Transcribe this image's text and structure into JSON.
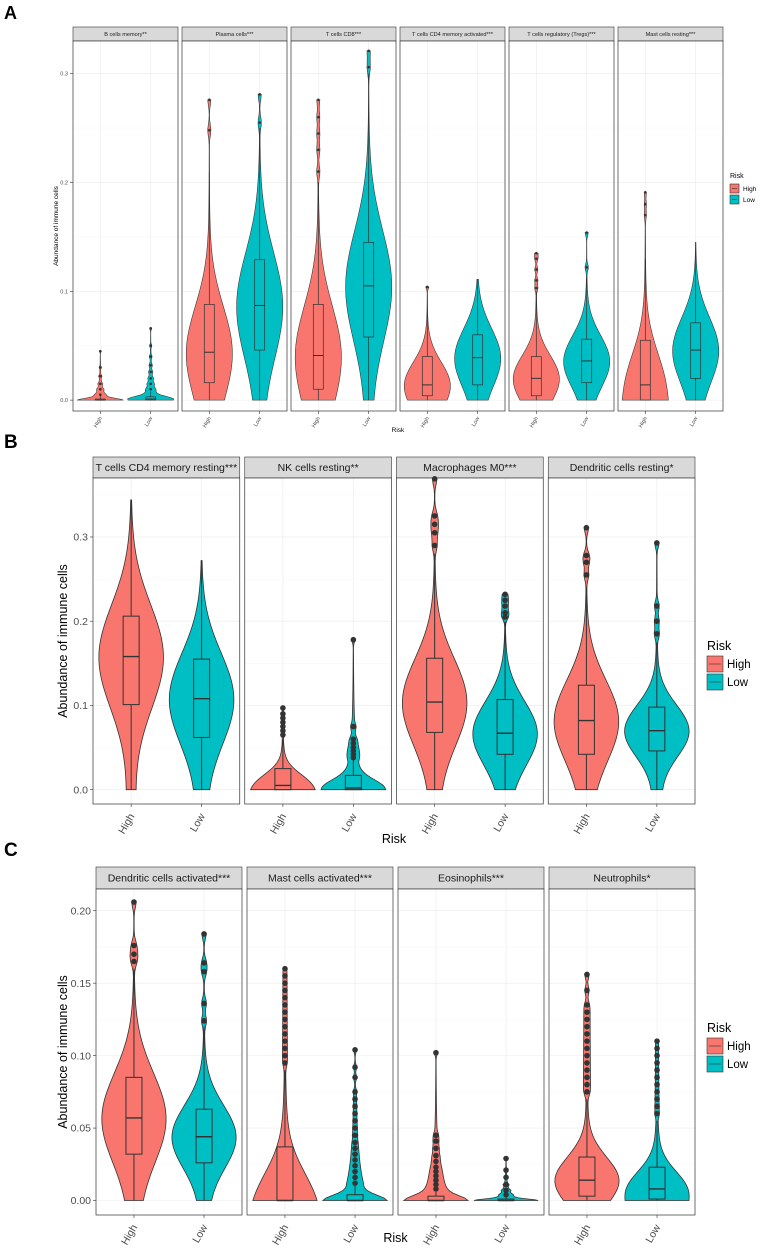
{
  "legend": {
    "title": "Risk",
    "entries": [
      {
        "label": "High",
        "color": "#F8766D"
      },
      {
        "label": "Low",
        "color": "#00BFC4"
      }
    ]
  },
  "chart_data": [
    {
      "panel_label": "A",
      "type": "violin",
      "xlabel": "Risk",
      "ylabel": "Abundance of immune cells",
      "ylim": [
        -0.01,
        0.33
      ],
      "yticks": [
        0.0,
        0.1,
        0.2,
        0.3
      ],
      "ytick_labels": [
        "0.0",
        "0.1",
        "0.2",
        "0.3"
      ],
      "categories": [
        "High",
        "Low"
      ],
      "facets": [
        {
          "title": "B cells memory**",
          "groups": [
            {
              "group": "High",
              "min": 0,
              "q1": 0,
              "median": 0,
              "q3": 0.001,
              "whisker_high": 0.005,
              "max": 0.045,
              "outliers": [
                0.005,
                0.01,
                0.015,
                0.022,
                0.03,
                0.045
              ]
            },
            {
              "group": "Low",
              "min": 0,
              "q1": 0,
              "median": 0.001,
              "q3": 0.003,
              "whisker_high": 0.008,
              "max": 0.066,
              "outliers": [
                0.01,
                0.015,
                0.02,
                0.026,
                0.032,
                0.04,
                0.05,
                0.066
              ]
            }
          ]
        },
        {
          "title": "Plasma cells***",
          "groups": [
            {
              "group": "High",
              "min": 0,
              "q1": 0.016,
              "median": 0.044,
              "q3": 0.088,
              "whisker_high": 0.21,
              "max": 0.276,
              "outliers": [
                0.248,
                0.276
              ]
            },
            {
              "group": "Low",
              "min": 0,
              "q1": 0.046,
              "median": 0.087,
              "q3": 0.129,
              "whisker_high": 0.25,
              "max": 0.281,
              "outliers": [
                0.255,
                0.281
              ]
            }
          ]
        },
        {
          "title": "T cells CD8***",
          "groups": [
            {
              "group": "High",
              "min": 0,
              "q1": 0.01,
              "median": 0.041,
              "q3": 0.088,
              "whisker_high": 0.2,
              "max": 0.276,
              "outliers": [
                0.21,
                0.23,
                0.245,
                0.26,
                0.276
              ]
            },
            {
              "group": "Low",
              "min": 0,
              "q1": 0.058,
              "median": 0.105,
              "q3": 0.145,
              "whisker_high": 0.3,
              "max": 0.321,
              "outliers": [
                0.306,
                0.321
              ]
            }
          ]
        },
        {
          "title": "T cells CD4 memory activated***",
          "groups": [
            {
              "group": "High",
              "min": 0,
              "q1": 0.004,
              "median": 0.014,
              "q3": 0.04,
              "whisker_high": 0.098,
              "max": 0.104,
              "outliers": [
                0.104
              ]
            },
            {
              "group": "Low",
              "min": 0,
              "q1": 0.014,
              "median": 0.039,
              "q3": 0.06,
              "whisker_high": 0.111,
              "max": 0.111,
              "outliers": []
            }
          ]
        },
        {
          "title": "T cells regulatory (Tregs)***",
          "groups": [
            {
              "group": "High",
              "min": 0,
              "q1": 0.004,
              "median": 0.02,
              "q3": 0.04,
              "whisker_high": 0.1,
              "max": 0.135,
              "outliers": [
                0.103,
                0.11,
                0.12,
                0.13,
                0.135
              ]
            },
            {
              "group": "Low",
              "min": 0,
              "q1": 0.016,
              "median": 0.036,
              "q3": 0.056,
              "whisker_high": 0.112,
              "max": 0.154,
              "outliers": [
                0.122,
                0.154
              ]
            }
          ]
        },
        {
          "title": "Mast cells resting***",
          "groups": [
            {
              "group": "High",
              "min": 0,
              "q1": 0,
              "median": 0.014,
              "q3": 0.055,
              "whisker_high": 0.13,
              "max": 0.191,
              "outliers": [
                0.17,
                0.18,
                0.191
              ]
            },
            {
              "group": "Low",
              "min": 0,
              "q1": 0.02,
              "median": 0.046,
              "q3": 0.071,
              "whisker_high": 0.145,
              "max": 0.145,
              "outliers": []
            }
          ]
        }
      ]
    },
    {
      "panel_label": "B",
      "type": "violin",
      "xlabel": "Risk",
      "ylabel": "Abundance of immune cells",
      "ylim": [
        -0.017,
        0.37
      ],
      "yticks": [
        0.0,
        0.1,
        0.2,
        0.3
      ],
      "ytick_labels": [
        "0.0",
        "0.1",
        "0.2",
        "0.3"
      ],
      "categories": [
        "High",
        "Low"
      ],
      "facets": [
        {
          "title": "T cells CD4 memory resting***",
          "groups": [
            {
              "group": "High",
              "min": 0,
              "q1": 0.101,
              "median": 0.158,
              "q3": 0.206,
              "whisker_high": 0.344,
              "max": 0.344,
              "outliers": []
            },
            {
              "group": "Low",
              "min": 0,
              "q1": 0.062,
              "median": 0.108,
              "q3": 0.155,
              "whisker_high": 0.272,
              "max": 0.272,
              "outliers": []
            }
          ]
        },
        {
          "title": "NK cells resting**",
          "groups": [
            {
              "group": "High",
              "min": 0,
              "q1": 0,
              "median": 0.005,
              "q3": 0.025,
              "whisker_high": 0.06,
              "max": 0.097,
              "outliers": [
                0.065,
                0.07,
                0.075,
                0.08,
                0.085,
                0.09,
                0.097
              ]
            },
            {
              "group": "Low",
              "min": 0,
              "q1": 0,
              "median": 0.002,
              "q3": 0.017,
              "whisker_high": 0.035,
              "max": 0.178,
              "outliers": [
                0.038,
                0.042,
                0.046,
                0.05,
                0.055,
                0.06,
                0.075,
                0.178
              ]
            }
          ]
        },
        {
          "title": "Macrophages M0***",
          "groups": [
            {
              "group": "High",
              "min": 0,
              "q1": 0.068,
              "median": 0.104,
              "q3": 0.156,
              "whisker_high": 0.28,
              "max": 0.369,
              "outliers": [
                0.29,
                0.305,
                0.315,
                0.325,
                0.369
              ]
            },
            {
              "group": "Low",
              "min": 0,
              "q1": 0.042,
              "median": 0.067,
              "q3": 0.107,
              "whisker_high": 0.2,
              "max": 0.232,
              "outliers": [
                0.205,
                0.21,
                0.218,
                0.225,
                0.232
              ]
            }
          ]
        },
        {
          "title": "Dendritic cells resting*",
          "groups": [
            {
              "group": "High",
              "min": 0,
              "q1": 0.042,
              "median": 0.082,
              "q3": 0.124,
              "whisker_high": 0.24,
              "max": 0.311,
              "outliers": [
                0.255,
                0.27,
                0.278,
                0.311
              ]
            },
            {
              "group": "Low",
              "min": 0,
              "q1": 0.046,
              "median": 0.07,
              "q3": 0.098,
              "whisker_high": 0.175,
              "max": 0.293,
              "outliers": [
                0.185,
                0.2,
                0.218,
                0.293
              ]
            }
          ]
        }
      ]
    },
    {
      "panel_label": "C",
      "type": "violin",
      "xlabel": "Risk",
      "ylabel": "Abundance of immune cells",
      "ylim": [
        -0.01,
        0.215
      ],
      "yticks": [
        0.0,
        0.05,
        0.1,
        0.15,
        0.2
      ],
      "ytick_labels": [
        "0.00",
        "0.05",
        "0.10",
        "0.15",
        "0.20"
      ],
      "categories": [
        "High",
        "Low"
      ],
      "facets": [
        {
          "title": "Dendritic cells activated***",
          "groups": [
            {
              "group": "High",
              "min": 0,
              "q1": 0.032,
              "median": 0.057,
              "q3": 0.085,
              "whisker_high": 0.16,
              "max": 0.206,
              "outliers": [
                0.165,
                0.17,
                0.176,
                0.206
              ]
            },
            {
              "group": "Low",
              "min": 0,
              "q1": 0.026,
              "median": 0.044,
              "q3": 0.063,
              "whisker_high": 0.12,
              "max": 0.184,
              "outliers": [
                0.124,
                0.136,
                0.158,
                0.164,
                0.184
              ]
            }
          ]
        },
        {
          "title": "Mast cells activated***",
          "groups": [
            {
              "group": "High",
              "min": 0,
              "q1": 0,
              "median": 0,
              "q3": 0.037,
              "whisker_high": 0.09,
              "max": 0.16,
              "outliers": [
                0.095,
                0.1,
                0.105,
                0.11,
                0.115,
                0.12,
                0.125,
                0.13,
                0.135,
                0.14,
                0.145,
                0.15,
                0.155,
                0.16
              ]
            },
            {
              "group": "Low",
              "min": 0,
              "q1": 0,
              "median": 0,
              "q3": 0.004,
              "whisker_high": 0.01,
              "max": 0.104,
              "outliers": [
                0.012,
                0.016,
                0.02,
                0.024,
                0.028,
                0.032,
                0.036,
                0.04,
                0.045,
                0.05,
                0.055,
                0.06,
                0.065,
                0.07,
                0.075,
                0.085,
                0.092,
                0.104
              ]
            }
          ]
        },
        {
          "title": "Eosinophils***",
          "groups": [
            {
              "group": "High",
              "min": 0,
              "q1": 0,
              "median": 0,
              "q3": 0.003,
              "whisker_high": 0.006,
              "max": 0.102,
              "outliers": [
                0.008,
                0.011,
                0.014,
                0.017,
                0.02,
                0.023,
                0.027,
                0.031,
                0.036,
                0.041,
                0.045,
                0.102
              ]
            },
            {
              "group": "Low",
              "min": 0,
              "q1": 0,
              "median": 0,
              "q3": 0.001,
              "whisker_high": 0.002,
              "max": 0.029,
              "outliers": [
                0.004,
                0.007,
                0.011,
                0.016,
                0.021,
                0.029
              ]
            }
          ]
        },
        {
          "title": "Neutrophils*",
          "groups": [
            {
              "group": "High",
              "min": 0,
              "q1": 0.003,
              "median": 0.014,
              "q3": 0.03,
              "whisker_high": 0.07,
              "max": 0.156,
              "outliers": [
                0.075,
                0.08,
                0.085,
                0.09,
                0.095,
                0.1,
                0.105,
                0.11,
                0.115,
                0.12,
                0.125,
                0.13,
                0.135,
                0.145,
                0.156
              ]
            },
            {
              "group": "Low",
              "min": 0,
              "q1": 0.001,
              "median": 0.008,
              "q3": 0.023,
              "whisker_high": 0.055,
              "max": 0.11,
              "outliers": [
                0.06,
                0.065,
                0.07,
                0.075,
                0.08,
                0.085,
                0.09,
                0.095,
                0.1,
                0.105,
                0.11
              ]
            }
          ]
        }
      ]
    }
  ]
}
